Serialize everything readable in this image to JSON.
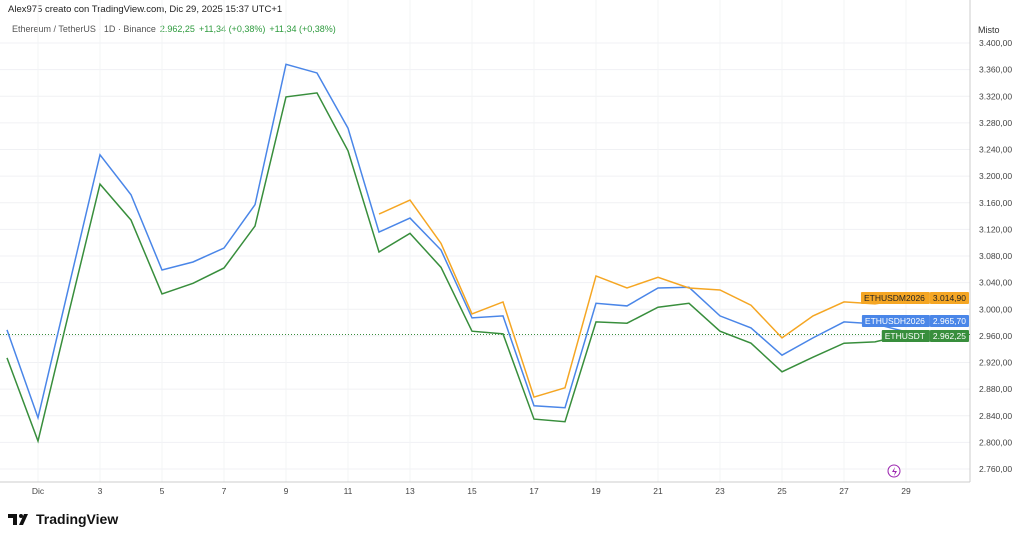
{
  "header": {
    "credit": "Alex975 creato con TradingView.com, Dic 29, 2025 15:37 UTC+1",
    "symbol": "Ethereum / TetherUS · 1D · Binance",
    "price": "2.962,25",
    "change1": "+11,34 (+0,38%)",
    "change2": "+11,34 (+0,38%)"
  },
  "scale_mode": "Misto",
  "footer": {
    "logo": "TradingView"
  },
  "chart_data": {
    "type": "line",
    "x": [
      "Nov 30",
      "Dic",
      "2",
      "3",
      "4",
      "5",
      "6",
      "7",
      "8",
      "9",
      "10",
      "11",
      "12",
      "13",
      "14",
      "15",
      "16",
      "17",
      "18",
      "19",
      "20",
      "21",
      "22",
      "23",
      "24",
      "25",
      "26",
      "27",
      "28",
      "29"
    ],
    "x_tick_labels": [
      "Dic",
      "3",
      "5",
      "7",
      "9",
      "11",
      "13",
      "15",
      "17",
      "19",
      "21",
      "23",
      "25",
      "27",
      "29"
    ],
    "y_tick_labels": [
      "3.400,00",
      "3.360,00",
      "3.320,00",
      "3.280,00",
      "3.240,00",
      "3.200,00",
      "3.160,00",
      "3.120,00",
      "3.080,00",
      "3.040,00",
      "3.000,00",
      "2.960,00",
      "2.920,00",
      "2.880,00",
      "2.840,00",
      "2.800,00",
      "2.760,00"
    ],
    "ylim": [
      2760,
      3400
    ],
    "grid": true,
    "series": [
      {
        "name": "ETHUSDH2026",
        "color": "#4a86e8",
        "last_label": "2.965,70",
        "values": [
          2969,
          2837,
          3035,
          3232,
          3172,
          3059,
          3071,
          3092,
          3157,
          3368,
          3355,
          3272,
          3116,
          3137,
          3089,
          2987,
          2990,
          2855,
          2852,
          3009,
          3005,
          3032,
          3033,
          2990,
          2972,
          2931,
          2957,
          2981,
          2978,
          2966
        ]
      },
      {
        "name": "ETHUSDT",
        "color": "#388e3c",
        "last_label": "2.962,25",
        "values": [
          2927,
          2802,
          2996,
          3188,
          3134,
          3023,
          3039,
          3062,
          3125,
          3319,
          3325,
          3238,
          3086,
          3114,
          3063,
          2967,
          2963,
          2835,
          2831,
          2981,
          2979,
          3003,
          3009,
          2967,
          2949,
          2906,
          2928,
          2949,
          2951,
          2962
        ]
      },
      {
        "name": "ETHUSDM2026",
        "color": "#f5a623",
        "last_label": "3.014,90",
        "values": [
          null,
          null,
          null,
          null,
          null,
          null,
          null,
          null,
          null,
          null,
          null,
          null,
          3143,
          3164,
          3099,
          2993,
          3011,
          2868,
          2882,
          3050,
          3032,
          3048,
          3032,
          3029,
          3006,
          2957,
          2990,
          3011,
          3008,
          3015
        ]
      }
    ]
  }
}
